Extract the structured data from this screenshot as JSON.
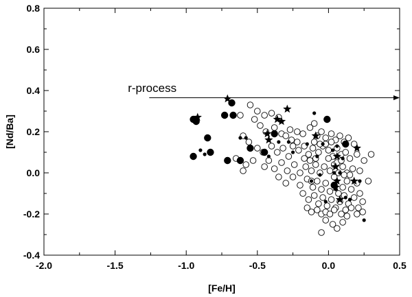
{
  "chart_data": {
    "type": "scatter",
    "title": "",
    "xlabel": "[Fe/H]",
    "ylabel": "[Nd/Ba]",
    "xlim": [
      -2.0,
      0.5
    ],
    "ylim": [
      -0.4,
      0.8
    ],
    "grid": false,
    "x_ticks": [
      -2.0,
      -1.5,
      -1.0,
      -0.5,
      0.0,
      0.5
    ],
    "x_tick_labels": [
      "-2.0",
      "-1.5",
      "-1.0",
      "-0.5",
      "0.0",
      "0.5"
    ],
    "y_ticks": [
      -0.4,
      -0.2,
      0.0,
      0.2,
      0.4,
      0.6,
      0.8
    ],
    "y_tick_labels": [
      "-0.4",
      "-0.2",
      "0.0",
      "0.2",
      "0.4",
      "0.6",
      "0.8"
    ],
    "annotations": [
      {
        "text": "r-process",
        "x": -1.41,
        "y": 0.41,
        "arrow_from": [
          -1.26,
          0.365
        ],
        "arrow_to": [
          0.5,
          0.365
        ]
      }
    ],
    "series": [
      {
        "marker": "open-circle",
        "points": [
          [
            -0.62,
            0.28
          ],
          [
            -0.55,
            0.33
          ],
          [
            -0.5,
            0.3
          ],
          [
            -0.45,
            0.28
          ],
          [
            -0.4,
            0.29
          ],
          [
            -0.35,
            0.27
          ],
          [
            -0.52,
            0.26
          ],
          [
            -0.48,
            0.23
          ],
          [
            -0.44,
            0.2
          ],
          [
            -0.38,
            0.22
          ],
          [
            -0.33,
            0.19
          ],
          [
            -0.3,
            0.18
          ],
          [
            -0.27,
            0.21
          ],
          [
            -0.22,
            0.2
          ],
          [
            -0.18,
            0.19
          ],
          [
            -0.13,
            0.22
          ],
          [
            -0.1,
            0.24
          ],
          [
            -0.08,
            0.18
          ],
          [
            -0.05,
            0.2
          ],
          [
            -0.02,
            0.17
          ],
          [
            0.02,
            0.19
          ],
          [
            0.05,
            0.16
          ],
          [
            0.08,
            0.18
          ],
          [
            0.11,
            0.15
          ],
          [
            0.14,
            0.17
          ],
          [
            0.18,
            0.14
          ],
          [
            -0.6,
            0.18
          ],
          [
            -0.56,
            0.15
          ],
          [
            -0.5,
            0.12
          ],
          [
            -0.46,
            0.1
          ],
          [
            -0.4,
            0.13
          ],
          [
            -0.36,
            0.1
          ],
          [
            -0.32,
            0.12
          ],
          [
            -0.28,
            0.08
          ],
          [
            -0.25,
            0.13
          ],
          [
            -0.21,
            0.11
          ],
          [
            -0.17,
            0.13
          ],
          [
            -0.14,
            0.09
          ],
          [
            -0.11,
            0.12
          ],
          [
            -0.07,
            0.1
          ],
          [
            -0.04,
            0.13
          ],
          [
            0.0,
            0.11
          ],
          [
            0.03,
            0.08
          ],
          [
            0.06,
            0.12
          ],
          [
            0.09,
            0.09
          ],
          [
            0.12,
            0.1
          ],
          [
            0.15,
            0.07
          ],
          [
            0.2,
            0.09
          ],
          [
            0.25,
            0.06
          ],
          [
            0.3,
            0.09
          ],
          [
            -0.65,
            0.07
          ],
          [
            -0.58,
            0.04
          ],
          [
            -0.53,
            0.06
          ],
          [
            -0.45,
            0.03
          ],
          [
            -0.42,
            0.06
          ],
          [
            -0.38,
            0.02
          ],
          [
            -0.33,
            0.05
          ],
          [
            -0.29,
            0.01
          ],
          [
            -0.24,
            0.04
          ],
          [
            -0.2,
            0.0
          ],
          [
            -0.16,
            0.03
          ],
          [
            -0.12,
            0.01
          ],
          [
            -0.09,
            0.04
          ],
          [
            -0.06,
            0.0
          ],
          [
            -0.03,
            0.03
          ],
          [
            0.01,
            0.01
          ],
          [
            0.04,
            0.04
          ],
          [
            0.07,
            0.0
          ],
          [
            0.1,
            0.03
          ],
          [
            0.13,
            0.0
          ],
          [
            0.17,
            0.02
          ],
          [
            0.22,
            0.01
          ],
          [
            0.28,
            -0.04
          ],
          [
            -0.6,
            0.01
          ],
          [
            -0.35,
            -0.02
          ],
          [
            -0.3,
            -0.05
          ],
          [
            -0.25,
            -0.02
          ],
          [
            -0.2,
            -0.06
          ],
          [
            -0.15,
            -0.03
          ],
          [
            -0.11,
            -0.07
          ],
          [
            -0.08,
            -0.04
          ],
          [
            -0.05,
            -0.08
          ],
          [
            -0.02,
            -0.05
          ],
          [
            0.01,
            -0.09
          ],
          [
            0.04,
            -0.06
          ],
          [
            0.07,
            -0.1
          ],
          [
            0.1,
            -0.07
          ],
          [
            0.13,
            -0.04
          ],
          [
            0.16,
            -0.08
          ],
          [
            0.2,
            -0.05
          ],
          [
            -0.18,
            -0.1
          ],
          [
            -0.14,
            -0.13
          ],
          [
            -0.1,
            -0.11
          ],
          [
            -0.07,
            -0.15
          ],
          [
            -0.04,
            -0.12
          ],
          [
            -0.01,
            -0.16
          ],
          [
            0.02,
            -0.13
          ],
          [
            0.05,
            -0.17
          ],
          [
            0.08,
            -0.14
          ],
          [
            0.11,
            -0.11
          ],
          [
            0.14,
            -0.15
          ],
          [
            0.18,
            -0.12
          ],
          [
            0.22,
            -0.1
          ],
          [
            -0.15,
            -0.17
          ],
          [
            -0.12,
            -0.19
          ],
          [
            -0.08,
            -0.18
          ],
          [
            -0.05,
            -0.2
          ],
          [
            -0.02,
            -0.19
          ],
          [
            0.01,
            -0.2
          ],
          [
            0.04,
            -0.18
          ],
          [
            0.09,
            -0.2
          ],
          [
            0.12,
            -0.18
          ],
          [
            0.16,
            -0.17
          ],
          [
            0.21,
            -0.17
          ],
          [
            0.24,
            -0.14
          ],
          [
            -0.02,
            -0.23
          ],
          [
            0.03,
            -0.25
          ],
          [
            0.06,
            -0.27
          ],
          [
            0.1,
            -0.24
          ],
          [
            0.13,
            -0.21
          ],
          [
            -0.05,
            -0.29
          ],
          [
            0.24,
            -0.19
          ],
          [
            0.2,
            -0.2
          ],
          [
            -0.1,
            0.15
          ],
          [
            -0.06,
            0.14
          ],
          [
            -0.02,
            0.14
          ],
          [
            0.02,
            0.15
          ],
          [
            0.06,
            0.05
          ],
          [
            0.09,
            0.06
          ],
          [
            -0.13,
            0.06
          ],
          [
            -0.09,
            0.07
          ],
          [
            0.0,
            0.07
          ],
          [
            0.04,
            -0.02
          ],
          [
            0.11,
            -0.01
          ],
          [
            0.15,
            -0.01
          ],
          [
            -0.12,
            -0.04
          ],
          [
            -0.17,
            0.07
          ],
          [
            -0.22,
            0.15
          ],
          [
            -0.26,
            0.16
          ]
        ]
      },
      {
        "marker": "filled-circle-large",
        "points": [
          [
            -0.95,
            0.26
          ],
          [
            -0.93,
            0.25
          ],
          [
            -0.68,
            0.34
          ],
          [
            -0.73,
            0.28
          ],
          [
            -0.67,
            0.28
          ],
          [
            -0.85,
            0.17
          ],
          [
            -0.95,
            0.08
          ],
          [
            -0.83,
            0.1
          ],
          [
            -0.71,
            0.06
          ],
          [
            -0.62,
            0.06
          ],
          [
            -0.55,
            0.12
          ],
          [
            -0.45,
            0.1
          ],
          [
            -0.38,
            0.19
          ],
          [
            -0.01,
            0.26
          ],
          [
            0.12,
            0.14
          ],
          [
            0.04,
            -0.06
          ]
        ]
      },
      {
        "marker": "filled-dot-small",
        "points": [
          [
            -0.9,
            0.11
          ],
          [
            -0.87,
            0.09
          ],
          [
            -0.62,
            0.17
          ],
          [
            -0.58,
            0.17
          ],
          [
            -0.42,
            0.08
          ],
          [
            -0.35,
            0.15
          ],
          [
            -0.28,
            0.15
          ],
          [
            -0.25,
            0.1
          ],
          [
            -0.1,
            0.29
          ],
          [
            -0.15,
            0.14
          ],
          [
            -0.08,
            0.08
          ],
          [
            -0.06,
            -0.01
          ],
          [
            0.04,
            0.0
          ],
          [
            0.08,
            0.0
          ],
          [
            0.12,
            -0.12
          ],
          [
            0.15,
            -0.13
          ],
          [
            0.22,
            -0.04
          ],
          [
            0.25,
            -0.23
          ],
          [
            0.05,
            -0.08
          ],
          [
            -0.12,
            -0.04
          ],
          [
            -0.04,
            0.14
          ],
          [
            0.03,
            0.11
          ],
          [
            0.06,
            0.13
          ],
          [
            0.1,
            0.07
          ],
          [
            -0.02,
            -0.14
          ]
        ]
      },
      {
        "marker": "star",
        "points": [
          [
            -0.71,
            0.36
          ],
          [
            -0.92,
            0.27
          ],
          [
            -0.43,
            0.19
          ],
          [
            -0.42,
            0.16
          ],
          [
            -0.36,
            0.26
          ],
          [
            -0.33,
            0.25
          ],
          [
            -0.29,
            0.31
          ],
          [
            -0.09,
            0.18
          ],
          [
            0.06,
            0.08
          ],
          [
            0.2,
            0.12
          ],
          [
            0.05,
            0.03
          ],
          [
            0.05,
            -0.07
          ],
          [
            0.06,
            -0.04
          ],
          [
            0.18,
            -0.04
          ],
          [
            0.08,
            -0.13
          ]
        ]
      }
    ]
  }
}
